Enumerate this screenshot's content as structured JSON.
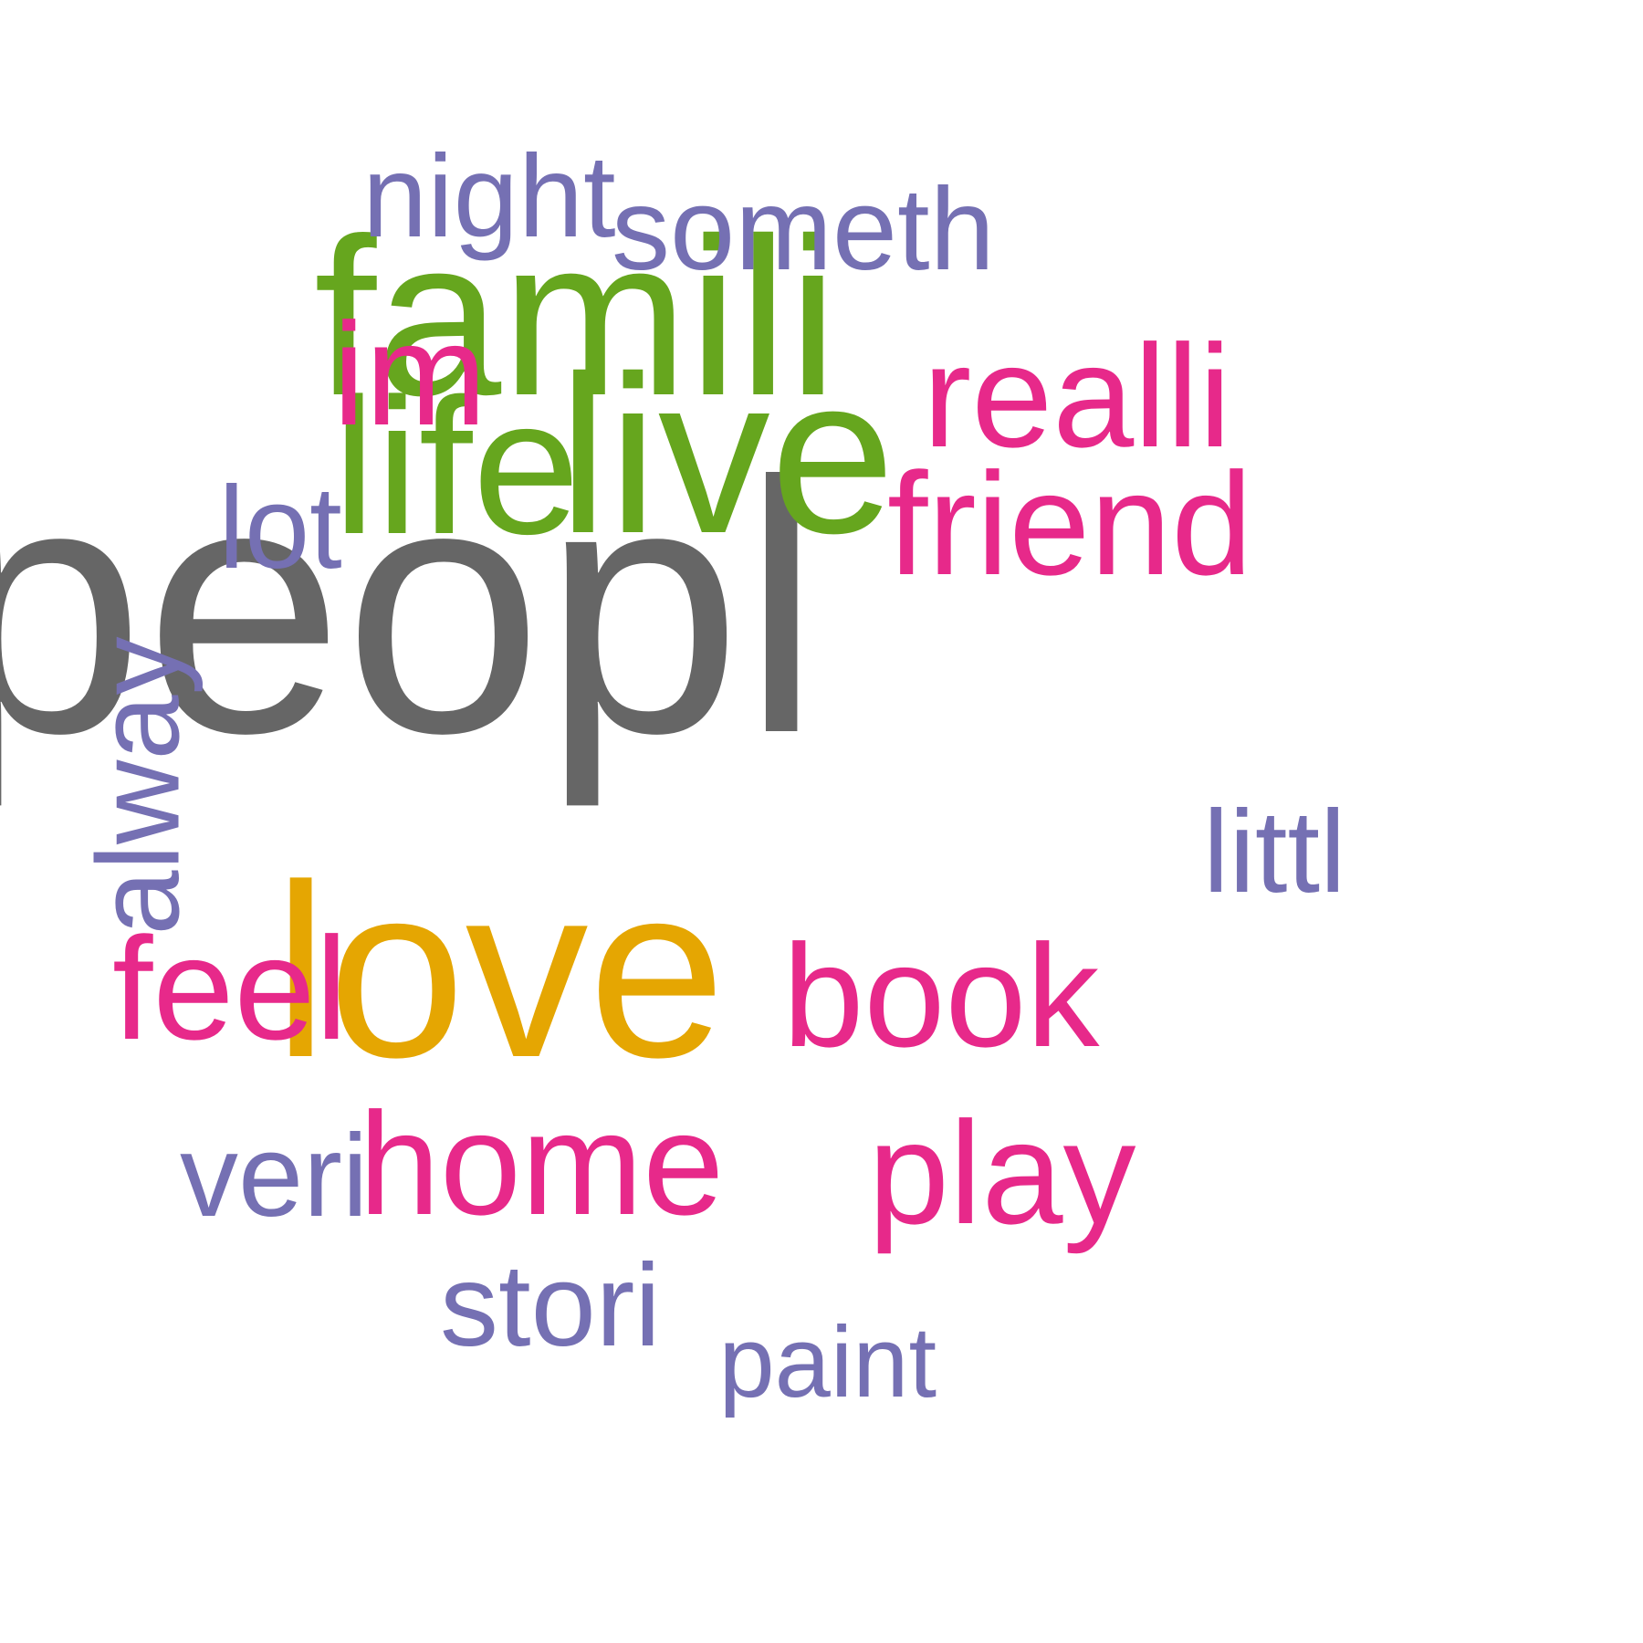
{
  "colors": {
    "gray": "#666666",
    "orange": "#E5A602",
    "green": "#66A61E",
    "pink": "#E7298A",
    "purple": "#7570B3"
  },
  "words": [
    {
      "id": "peopl",
      "text": "peopl",
      "color": "#666666",
      "rotated": false
    },
    {
      "id": "love",
      "text": "love",
      "color": "#E5A602",
      "rotated": false
    },
    {
      "id": "famili",
      "text": "famili",
      "color": "#66A61E",
      "rotated": false
    },
    {
      "id": "life",
      "text": "life",
      "color": "#66A61E",
      "rotated": false
    },
    {
      "id": "live",
      "text": "live",
      "color": "#66A61E",
      "rotated": false
    },
    {
      "id": "friend",
      "text": "friend",
      "color": "#E7298A",
      "rotated": false
    },
    {
      "id": "book",
      "text": "book",
      "color": "#E7298A",
      "rotated": false
    },
    {
      "id": "home",
      "text": "home",
      "color": "#E7298A",
      "rotated": false
    },
    {
      "id": "play",
      "text": "play",
      "color": "#E7298A",
      "rotated": false
    },
    {
      "id": "feel",
      "text": "feel",
      "color": "#E7298A",
      "rotated": false
    },
    {
      "id": "im",
      "text": "im",
      "color": "#E7298A",
      "rotated": false
    },
    {
      "id": "realli",
      "text": "realli",
      "color": "#E7298A",
      "rotated": false
    },
    {
      "id": "someth",
      "text": "someth",
      "color": "#7570B3",
      "rotated": false
    },
    {
      "id": "night",
      "text": "night",
      "color": "#7570B3",
      "rotated": false
    },
    {
      "id": "lot",
      "text": "lot",
      "color": "#7570B3",
      "rotated": false
    },
    {
      "id": "alway",
      "text": "alway",
      "color": "#7570B3",
      "rotated": true
    },
    {
      "id": "littl",
      "text": "littl",
      "color": "#7570B3",
      "rotated": false
    },
    {
      "id": "veri",
      "text": "veri",
      "color": "#7570B3",
      "rotated": false
    },
    {
      "id": "stori",
      "text": "stori",
      "color": "#7570B3",
      "rotated": false
    },
    {
      "id": "paint",
      "text": "paint",
      "color": "#7570B3",
      "rotated": false
    }
  ]
}
